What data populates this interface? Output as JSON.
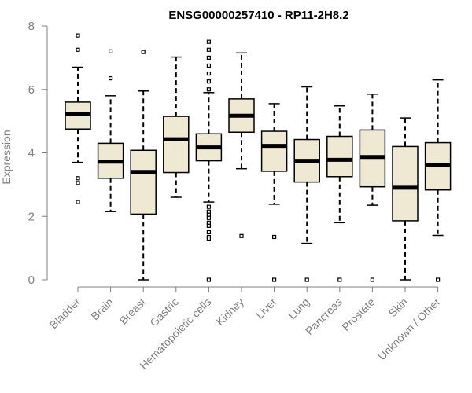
{
  "chart_data": {
    "type": "box",
    "title": "ENSG00000257410 - RP11-2H8.2",
    "xlabel": "",
    "ylabel": "Expression",
    "ylim": [
      0,
      8
    ],
    "yticks": [
      0,
      2,
      4,
      6,
      8
    ],
    "box_fill": "#efe8d2",
    "box_stroke": "#000000",
    "categories": [
      "Bladder",
      "Brain",
      "Breast",
      "Gastric",
      "Hematopoietic cells",
      "Kidney",
      "Liver",
      "Lung",
      "Pancreas",
      "Prostate",
      "Skin",
      "Unknown / Other"
    ],
    "boxes": [
      {
        "min": 3.7,
        "q1": 4.75,
        "median": 5.22,
        "q3": 5.6,
        "max": 6.7,
        "outliers": [
          7.7,
          7.25,
          3.2,
          3.05,
          2.45
        ]
      },
      {
        "min": 2.15,
        "q1": 3.2,
        "median": 3.72,
        "q3": 4.3,
        "max": 5.8,
        "outliers": [
          7.2,
          6.35
        ]
      },
      {
        "min": 0.0,
        "q1": 2.07,
        "median": 3.4,
        "q3": 4.08,
        "max": 5.95,
        "outliers": [
          7.18
        ]
      },
      {
        "min": 2.6,
        "q1": 3.38,
        "median": 4.43,
        "q3": 5.15,
        "max": 7.02,
        "outliers": []
      },
      {
        "min": 2.45,
        "q1": 3.75,
        "median": 4.17,
        "q3": 4.6,
        "max": 5.9,
        "outliers": [
          7.5,
          7.25,
          7.0,
          6.75,
          6.5,
          6.25,
          6.0,
          2.3,
          2.15,
          2.05,
          1.95,
          1.8,
          1.7,
          1.5,
          1.35,
          1.3,
          0.0
        ]
      },
      {
        "min": 3.5,
        "q1": 4.65,
        "median": 5.17,
        "q3": 5.7,
        "max": 7.15,
        "outliers": [
          1.38
        ]
      },
      {
        "min": 2.38,
        "q1": 3.42,
        "median": 4.22,
        "q3": 4.68,
        "max": 5.55,
        "outliers": [
          1.35,
          0.0
        ]
      },
      {
        "min": 1.15,
        "q1": 3.08,
        "median": 3.75,
        "q3": 4.42,
        "max": 6.08,
        "outliers": [
          0.0
        ]
      },
      {
        "min": 1.8,
        "q1": 3.25,
        "median": 3.78,
        "q3": 4.52,
        "max": 5.48,
        "outliers": [
          0.0
        ]
      },
      {
        "min": 2.35,
        "q1": 2.93,
        "median": 3.87,
        "q3": 4.72,
        "max": 5.85,
        "outliers": [
          0.0
        ]
      },
      {
        "min": 0.0,
        "q1": 1.86,
        "median": 2.9,
        "q3": 4.2,
        "max": 5.1,
        "outliers": []
      },
      {
        "min": 1.4,
        "q1": 2.83,
        "median": 3.62,
        "q3": 4.32,
        "max": 6.3,
        "outliers": [
          0.0
        ]
      }
    ]
  }
}
